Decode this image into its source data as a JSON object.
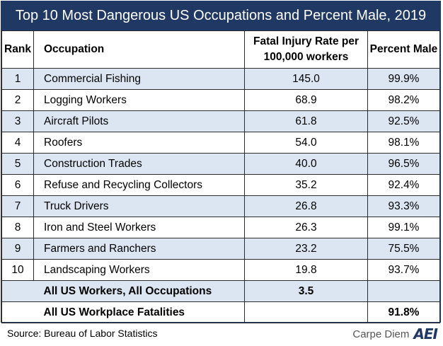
{
  "title": "Top 10 Most Dangerous US Occupations and Percent Male, 2019",
  "headers": {
    "rank": "Rank",
    "occupation": "Occupation",
    "rate": "Fatal Injury Rate per 100,000 workers",
    "male": "Percent Male"
  },
  "rows": [
    {
      "rank": "1",
      "occupation": "Commercial Fishing",
      "rate": "145.0",
      "male": "99.9%"
    },
    {
      "rank": "2",
      "occupation": "Logging Workers",
      "rate": "68.9",
      "male": "98.2%"
    },
    {
      "rank": "3",
      "occupation": "Aircraft Pilots",
      "rate": "61.8",
      "male": "92.5%"
    },
    {
      "rank": "4",
      "occupation": "Roofers",
      "rate": "54.0",
      "male": "98.1%"
    },
    {
      "rank": "5",
      "occupation": "Construction Trades",
      "rate": "40.0",
      "male": "96.5%"
    },
    {
      "rank": "6",
      "occupation": "Refuse and Recycling Collectors",
      "rate": "35.2",
      "male": "92.4%"
    },
    {
      "rank": "7",
      "occupation": "Truck Drivers",
      "rate": "26.8",
      "male": "93.3%"
    },
    {
      "rank": "8",
      "occupation": "Iron and Steel Workers",
      "rate": "26.3",
      "male": "99.1%"
    },
    {
      "rank": "9",
      "occupation": "Farmers and Ranchers",
      "rate": "23.2",
      "male": "75.5%"
    },
    {
      "rank": "10",
      "occupation": "Landscaping Workers",
      "rate": "19.8",
      "male": "93.7%"
    }
  ],
  "summary": [
    {
      "label": "All US Workers, All Occupations",
      "rate": "3.5",
      "male": ""
    },
    {
      "label": "All US Workplace Fatalities",
      "rate": "",
      "male": "91.8%"
    }
  ],
  "source": "Source: Bureau of Labor Statistics",
  "brand": "Carpe Diem",
  "logo_text": "AEI",
  "colors": {
    "header_bg": "#1f3864",
    "row_shade": "#dce6f2"
  },
  "chart_data": {
    "type": "table",
    "title": "Top 10 Most Dangerous US Occupations and Percent Male, 2019",
    "columns": [
      "Rank",
      "Occupation",
      "Fatal Injury Rate per 100,000 workers",
      "Percent Male"
    ],
    "categories": [
      "Commercial Fishing",
      "Logging Workers",
      "Aircraft Pilots",
      "Roofers",
      "Construction Trades",
      "Refuse and Recycling Collectors",
      "Truck Drivers",
      "Iron and Steel Workers",
      "Farmers and Ranchers",
      "Landscaping Workers"
    ],
    "series": [
      {
        "name": "Fatal Injury Rate per 100,000 workers",
        "values": [
          145.0,
          68.9,
          61.8,
          54.0,
          40.0,
          35.2,
          26.8,
          26.3,
          23.2,
          19.8
        ]
      },
      {
        "name": "Percent Male",
        "values": [
          99.9,
          98.2,
          92.5,
          98.1,
          96.5,
          92.4,
          93.3,
          99.1,
          75.5,
          93.7
        ]
      }
    ]
  }
}
